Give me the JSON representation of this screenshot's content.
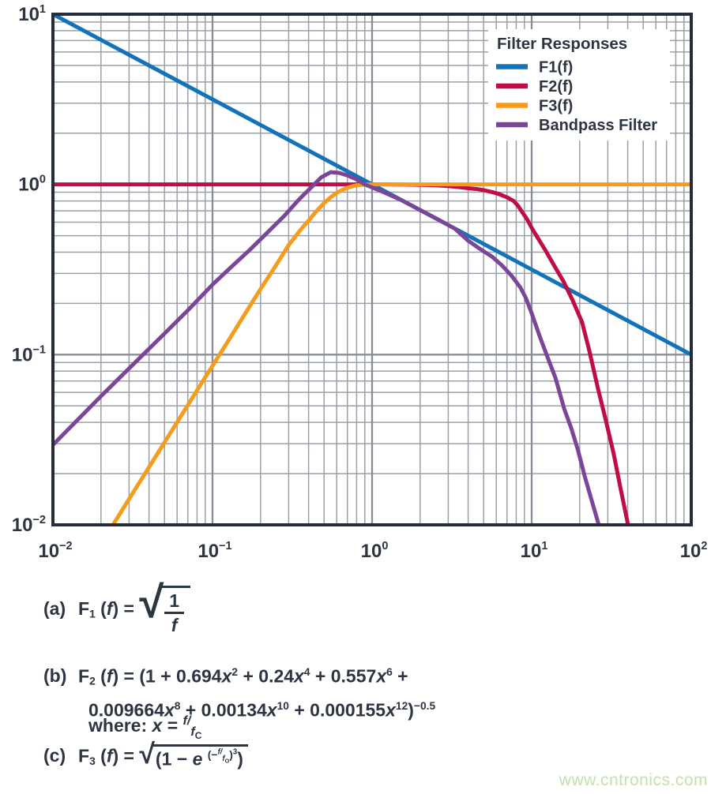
{
  "watermark": "www.cntronics.com",
  "colors": {
    "text": "#2D3442",
    "grid_minor": "#9BA0A8",
    "grid_major": "#878D97",
    "frame": "#262D3A",
    "background": "#FFFFFF",
    "legend_background": "#FFFFFF",
    "watermark": "#C5E0AE"
  },
  "chart_data": {
    "type": "line",
    "xscale": "log",
    "yscale": "log",
    "xlim": [
      0.01,
      100
    ],
    "ylim": [
      0.01,
      10
    ],
    "x_tick_exponents": [
      -2,
      -1,
      0,
      1,
      2
    ],
    "y_tick_exponents": [
      -2,
      -1,
      0,
      1
    ],
    "grid": "log major and minor gridlines on both axes",
    "legend": {
      "title": "Filter Responses",
      "position": "top-right"
    },
    "series": [
      {
        "name": "F1(f)",
        "color": "#1273B8",
        "points": [
          [
            0.01,
            10
          ],
          [
            100,
            0.1
          ]
        ]
      },
      {
        "name": "F2(f)",
        "color": "#C00D45",
        "points": [
          [
            0.01,
            1
          ],
          [
            1.2,
            1
          ],
          [
            1.6,
            0.998
          ],
          [
            2,
            0.994
          ],
          [
            2.5,
            0.988
          ],
          [
            3,
            0.978
          ],
          [
            3.5,
            0.965
          ],
          [
            4,
            0.95
          ],
          [
            4.5,
            0.94
          ],
          [
            5,
            0.925
          ],
          [
            5.7,
            0.9
          ],
          [
            6.3,
            0.875
          ],
          [
            7,
            0.84
          ],
          [
            7.7,
            0.8
          ],
          [
            8.2,
            0.75
          ],
          [
            8.8,
            0.68
          ],
          [
            9.4,
            0.62
          ],
          [
            10,
            0.556
          ],
          [
            11,
            0.48
          ],
          [
            12.2,
            0.41
          ],
          [
            13.8,
            0.335
          ],
          [
            15.8,
            0.27
          ],
          [
            18,
            0.21
          ],
          [
            20.7,
            0.155
          ],
          [
            23,
            0.105
          ],
          [
            26,
            0.0635
          ],
          [
            29,
            0.042
          ],
          [
            32.7,
            0.026
          ],
          [
            36,
            0.0165
          ],
          [
            40,
            0.0102
          ],
          [
            41.5,
            0.0082
          ]
        ]
      },
      {
        "name": "F3(f)",
        "color": "#F59B1E",
        "points": [
          [
            0.0238,
            0.01
          ],
          [
            0.03,
            0.0142
          ],
          [
            0.04,
            0.0218
          ],
          [
            0.05,
            0.0305
          ],
          [
            0.065,
            0.0452
          ],
          [
            0.08,
            0.0617
          ],
          [
            0.1,
            0.086
          ],
          [
            0.13,
            0.127
          ],
          [
            0.16,
            0.174
          ],
          [
            0.2,
            0.243
          ],
          [
            0.25,
            0.335
          ],
          [
            0.3,
            0.44
          ],
          [
            0.35,
            0.53
          ],
          [
            0.4,
            0.614
          ],
          [
            0.45,
            0.7
          ],
          [
            0.5,
            0.777
          ],
          [
            0.55,
            0.84
          ],
          [
            0.6,
            0.893
          ],
          [
            0.65,
            0.928
          ],
          [
            0.7,
            0.957
          ],
          [
            0.8,
            0.989
          ],
          [
            0.9,
            0.998
          ],
          [
            1,
            1
          ],
          [
            100,
            1
          ]
        ]
      },
      {
        "name": "Bandpass Filter",
        "color": "#7B4697",
        "points": [
          [
            0.01,
            0.0295
          ],
          [
            0.02,
            0.057
          ],
          [
            0.03,
            0.083
          ],
          [
            0.05,
            0.133
          ],
          [
            0.07,
            0.182
          ],
          [
            0.1,
            0.258
          ],
          [
            0.13,
            0.325
          ],
          [
            0.17,
            0.41
          ],
          [
            0.22,
            0.52
          ],
          [
            0.28,
            0.65
          ],
          [
            0.35,
            0.82
          ],
          [
            0.42,
            0.97
          ],
          [
            0.48,
            1.1
          ],
          [
            0.55,
            1.18
          ],
          [
            0.62,
            1.17
          ],
          [
            0.7,
            1.13
          ],
          [
            0.8,
            1.07
          ],
          [
            0.9,
            1.0
          ],
          [
            1,
            0.96
          ],
          [
            1.2,
            0.895
          ],
          [
            1.5,
            0.815
          ],
          [
            1.8,
            0.745
          ],
          [
            2.2,
            0.675
          ],
          [
            2.7,
            0.61
          ],
          [
            3.3,
            0.55
          ],
          [
            4,
            0.467
          ],
          [
            4.8,
            0.415
          ],
          [
            5.65,
            0.376
          ],
          [
            6.5,
            0.335
          ],
          [
            7.5,
            0.29
          ],
          [
            8.5,
            0.248
          ],
          [
            9.2,
            0.215
          ],
          [
            10,
            0.175
          ],
          [
            11.2,
            0.129
          ],
          [
            12.5,
            0.098
          ],
          [
            14.1,
            0.073
          ],
          [
            16,
            0.048
          ],
          [
            17.7,
            0.037
          ],
          [
            19.5,
            0.0275
          ],
          [
            21.5,
            0.0193
          ],
          [
            24,
            0.0135
          ],
          [
            26.5,
            0.0098
          ],
          [
            28,
            0.008
          ]
        ]
      }
    ]
  },
  "equations": {
    "a": [
      {
        "t": "lbl",
        "v": "(a)"
      },
      {
        "t": "txt",
        "v": "F"
      },
      {
        "t": "sub",
        "v": "1"
      },
      {
        "t": "txt",
        "v": " ("
      },
      {
        "t": "i",
        "v": "f"
      },
      {
        "t": "txt",
        "v": ") = "
      },
      {
        "t": "sqrt",
        "tall": true,
        "c": [
          {
            "t": "frac",
            "n": [
              {
                "t": "txt",
                "v": "1"
              }
            ],
            "d": [
              {
                "t": "i",
                "v": "f"
              }
            ]
          }
        ]
      }
    ],
    "b_line1": [
      {
        "t": "lbl",
        "v": "(b)"
      },
      {
        "t": "txt",
        "v": "F"
      },
      {
        "t": "sub",
        "v": "2"
      },
      {
        "t": "txt",
        "v": " ("
      },
      {
        "t": "i",
        "v": "f"
      },
      {
        "t": "txt",
        "v": ") = (1 + 0.694"
      },
      {
        "t": "i",
        "v": "x"
      },
      {
        "t": "sup",
        "v": "2"
      },
      {
        "t": "txt",
        "v": " + 0.24"
      },
      {
        "t": "i",
        "v": "x"
      },
      {
        "t": "sup",
        "v": "4"
      },
      {
        "t": "txt",
        "v": " + 0.557"
      },
      {
        "t": "i",
        "v": "x"
      },
      {
        "t": "sup",
        "v": "6"
      },
      {
        "t": "txt",
        "v": " +"
      }
    ],
    "b_line2": [
      {
        "t": "txt",
        "v": "0.009664"
      },
      {
        "t": "i",
        "v": "x"
      },
      {
        "t": "sup",
        "v": "8"
      },
      {
        "t": "txt",
        "v": " + 0.00134"
      },
      {
        "t": "i",
        "v": "x"
      },
      {
        "t": "sup",
        "v": "10"
      },
      {
        "t": "txt",
        "v": " + 0.000155"
      },
      {
        "t": "i",
        "v": "x"
      },
      {
        "t": "sup",
        "v": "12"
      },
      {
        "t": "txt",
        "v": ")"
      },
      {
        "t": "sup",
        "v": "−0.5"
      }
    ],
    "where": [
      {
        "t": "txt",
        "v": "where: "
      },
      {
        "t": "i",
        "v": "x"
      },
      {
        "t": "txt",
        "v": " = "
      },
      {
        "t": "fover",
        "c": [
          {
            "t": "i",
            "v": "f/"
          }
        ]
      },
      {
        "t": "funder",
        "c": [
          {
            "t": "i",
            "v": "f"
          },
          {
            "t": "ssub",
            "v": "C"
          }
        ]
      }
    ],
    "c": [
      {
        "t": "lbl",
        "v": "(c)"
      },
      {
        "t": "txt",
        "v": "F"
      },
      {
        "t": "sub",
        "v": "3"
      },
      {
        "t": "txt",
        "v": " ("
      },
      {
        "t": "i",
        "v": "f"
      },
      {
        "t": "txt",
        "v": ") = "
      },
      {
        "t": "sqrt",
        "c": [
          {
            "t": "txt",
            "v": "(1 − "
          },
          {
            "t": "i",
            "v": "e"
          },
          {
            "t": "txt",
            "v": " "
          },
          {
            "t": "sup",
            "c": [
              {
                "t": "txt",
                "v": "(−"
              },
              {
                "t": "fover",
                "c": [
                  {
                    "t": "i",
                    "v": "f/"
                  }
                ]
              },
              {
                "t": "funder",
                "c": [
                  {
                    "t": "i",
                    "v": "f"
                  },
                  {
                    "t": "ssub",
                    "v": "O"
                  }
                ]
              },
              {
                "t": "txt",
                "v": ")"
              },
              {
                "t": "fover",
                "c": [
                  {
                    "t": "txt",
                    "v": "3"
                  }
                ]
              }
            ]
          },
          {
            "t": "txt",
            "v": ")"
          }
        ]
      }
    ]
  }
}
